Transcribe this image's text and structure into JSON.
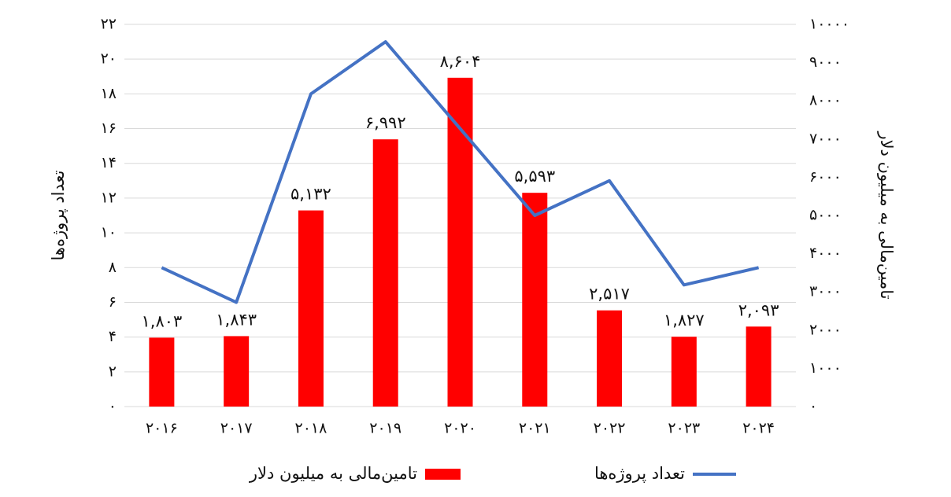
{
  "chart_data": {
    "type": "combo",
    "categories": [
      "۲۰۱۶",
      "۲۰۱۷",
      "۲۰۱۸",
      "۲۰۱۹",
      "۲۰۲۰",
      "۲۰۲۱",
      "۲۰۲۲",
      "۲۰۲۳",
      "۲۰۲۴"
    ],
    "y_label": "تعداد پروژه‌ها",
    "y2_label": "تامین‌مالی به میلیون دلار",
    "ylim": [
      0,
      22
    ],
    "yticks": [
      {
        "value": 0,
        "label": "۰"
      },
      {
        "value": 2,
        "label": "۲"
      },
      {
        "value": 4,
        "label": "۴"
      },
      {
        "value": 6,
        "label": "۶"
      },
      {
        "value": 8,
        "label": "۸"
      },
      {
        "value": 10,
        "label": "۱۰"
      },
      {
        "value": 12,
        "label": "۱۲"
      },
      {
        "value": 14,
        "label": "۱۴"
      },
      {
        "value": 16,
        "label": "۱۶"
      },
      {
        "value": 18,
        "label": "۱۸"
      },
      {
        "value": 20,
        "label": "۲۰"
      },
      {
        "value": 22,
        "label": "۲۲"
      }
    ],
    "y2lim": [
      0,
      10000
    ],
    "y2ticks": [
      {
        "value": 0,
        "label": "۰"
      },
      {
        "value": 1000,
        "label": "۱۰۰۰"
      },
      {
        "value": 2000,
        "label": "۲۰۰۰"
      },
      {
        "value": 3000,
        "label": "۳۰۰۰"
      },
      {
        "value": 4000,
        "label": "۴۰۰۰"
      },
      {
        "value": 5000,
        "label": "۵۰۰۰"
      },
      {
        "value": 6000,
        "label": "۶۰۰۰"
      },
      {
        "value": 7000,
        "label": "۷۰۰۰"
      },
      {
        "value": 8000,
        "label": "۸۰۰۰"
      },
      {
        "value": 9000,
        "label": "۹۰۰۰"
      },
      {
        "value": 10000,
        "label": "۱۰۰۰۰"
      }
    ],
    "grid": true,
    "legend": "bottom",
    "series": [
      {
        "name": "تامین‌مالی به میلیون دلار",
        "type": "bar",
        "axis": "y2",
        "color": "#ff0000",
        "values": [
          1803,
          1843,
          5132,
          6992,
          8604,
          5593,
          2517,
          1827,
          2093
        ],
        "value_labels": [
          "۱,۸۰۳",
          "۱,۸۴۳",
          "۵,۱۳۲",
          "۶,۹۹۲",
          "۸,۶۰۴",
          "۵,۵۹۳",
          "۲,۵۱۷",
          "۱,۸۲۷",
          "۲,۰۹۳"
        ]
      },
      {
        "name": "تعداد پروژه‌ها",
        "type": "line",
        "color": "#4472c4",
        "values": [
          8,
          6,
          18,
          21,
          16,
          11,
          13,
          7,
          8
        ]
      }
    ]
  }
}
